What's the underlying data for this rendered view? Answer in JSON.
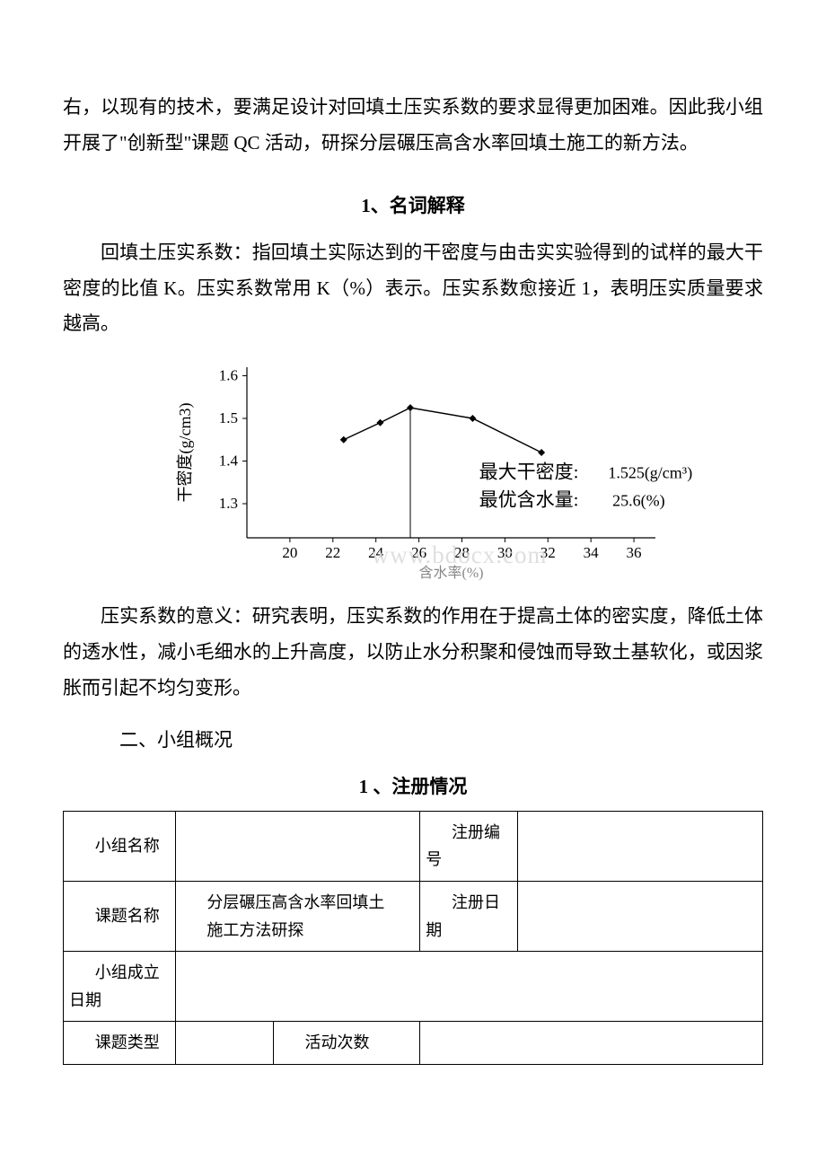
{
  "intro_paragraph": "右，以现有的技术，要满足设计对回填土压实系数的要求显得更加困难。因此我小组开展了\"创新型\"课题 QC 活动，研探分层碾压高含水率回填土施工的新方法。",
  "section1": {
    "heading": "1、名词解释",
    "para1": "回填土压实系数：指回填土实际达到的干密度与由击实实验得到的试样的最大干密度的比值 K。压实系数常用 K（%）表示。压实系数愈接近 1，表明压实质量要求越高。",
    "para2": "压实系数的意义：研究表明，压实系数的作用在于提高土体的密实度，降低土体的透水性，减小毛细水的上升高度，以防止水分积聚和侵蚀而导致土基软化，或因浆胀而引起不均匀变形。"
  },
  "chart": {
    "type": "line",
    "y_label": "干密度(g/cm3)",
    "x_label": "含水率(%)",
    "x_ticks": [
      20,
      22,
      24,
      26,
      28,
      30,
      32,
      34,
      36
    ],
    "y_ticks": [
      1.3,
      1.4,
      1.5,
      1.6
    ],
    "xlim": [
      18,
      37
    ],
    "ylim": [
      1.22,
      1.62
    ],
    "points": [
      {
        "x": 22.5,
        "y": 1.45
      },
      {
        "x": 24.2,
        "y": 1.49
      },
      {
        "x": 25.6,
        "y": 1.525
      },
      {
        "x": 28.5,
        "y": 1.5
      },
      {
        "x": 31.7,
        "y": 1.42
      }
    ],
    "vertical_line_x": 25.6,
    "annotations": {
      "max_density_label": "最大干密度:",
      "max_density_value": "1.525(g/cm³)",
      "opt_water_label": "最优含水量:",
      "opt_water_value": "25.6(%)"
    },
    "line_color": "#000000",
    "marker_color": "#000000",
    "axis_color": "#000000",
    "background_color": "#ffffff",
    "label_fontsize": 18,
    "tick_fontsize": 17,
    "anno_fontsize_cn": 21,
    "anno_fontsize_val": 18,
    "watermark": "www.bdocx.com"
  },
  "section2": {
    "heading": "二、小组概况",
    "table_heading": "1 、注册情况"
  },
  "table": {
    "rows": [
      {
        "label1": "小组名称",
        "value1": "",
        "label2": "注册编号",
        "value2": ""
      },
      {
        "label1": "课题名称",
        "value1_line1": "分层碾压高含水率回填土",
        "value1_line2": "施工方法研探",
        "label2": "注册日期",
        "value2": ""
      },
      {
        "label1": "小组成立日期",
        "value1": ""
      },
      {
        "label1": "课题类型",
        "value1": "",
        "label2": "活动次数",
        "value2": ""
      }
    ]
  }
}
